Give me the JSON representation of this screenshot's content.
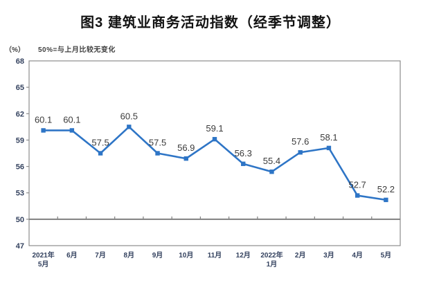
{
  "title": "图3  建筑业商务活动指数（经季节调整）",
  "axis_note": {
    "unit": "（%）",
    "baseline_note": "50%=与上月比较无变化"
  },
  "chart_data": {
    "type": "line",
    "title": "图3  建筑业商务活动指数（经季节调整）",
    "categories": [
      "2021年\n5月",
      "6月",
      "7月",
      "8月",
      "9月",
      "10月",
      "11月",
      "12月",
      "2022年\n1月",
      "2月",
      "3月",
      "4月",
      "5月"
    ],
    "series": [
      {
        "name": "建筑业商务活动指数",
        "values": [
          60.1,
          60.1,
          57.5,
          60.5,
          57.5,
          56.9,
          59.1,
          56.3,
          55.4,
          57.6,
          58.1,
          52.7,
          52.2
        ]
      }
    ],
    "ylabel": "（%）",
    "ylim": [
      47,
      68
    ],
    "yticks": [
      47,
      50,
      53,
      56,
      59,
      62,
      65,
      68
    ],
    "baseline": 50,
    "grid": false,
    "legend_position": "none",
    "data_labels": true,
    "marker": "square",
    "colors": {
      "line": "#2E75C6",
      "marker": "#2E75C6",
      "baseline": "#7F7F7F",
      "frame": "#8C8C8C",
      "axis_text": "#33415E",
      "point_label": "#3A3A3A"
    }
  }
}
